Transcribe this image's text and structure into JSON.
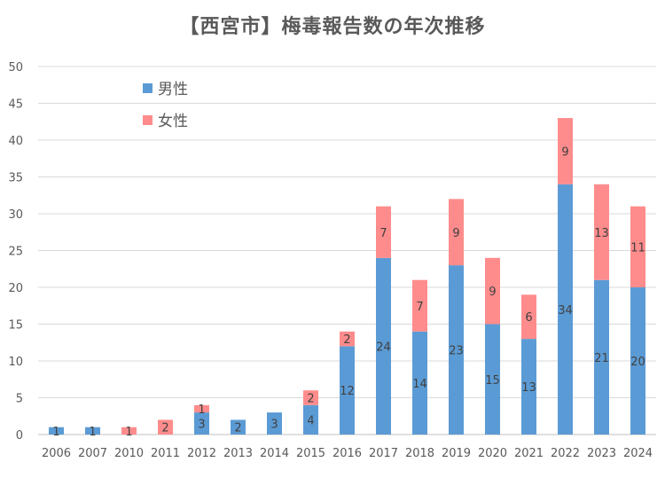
{
  "chart_data": {
    "type": "bar",
    "stacked": true,
    "title": "【西宮市】梅毒報告数の年次推移",
    "categories": [
      "2006",
      "2007",
      "2010",
      "2011",
      "2012",
      "2013",
      "2014",
      "2015",
      "2016",
      "2017",
      "2018",
      "2019",
      "2020",
      "2021",
      "2022",
      "2023",
      "2024"
    ],
    "series": [
      {
        "name": "男性",
        "color": "#5b9bd5",
        "values": [
          1,
          1,
          0,
          0,
          3,
          2,
          3,
          4,
          12,
          24,
          14,
          23,
          15,
          13,
          34,
          21,
          20
        ]
      },
      {
        "name": "女性",
        "color": "#ff8c8c",
        "values": [
          0,
          0,
          1,
          2,
          1,
          0,
          0,
          2,
          2,
          7,
          7,
          9,
          9,
          6,
          9,
          13,
          11
        ]
      }
    ],
    "ylim": [
      0,
      50
    ],
    "yticks": [
      0,
      5,
      10,
      15,
      20,
      25,
      30,
      35,
      40,
      45,
      50
    ],
    "grid": true,
    "legend_position": "top-left"
  }
}
